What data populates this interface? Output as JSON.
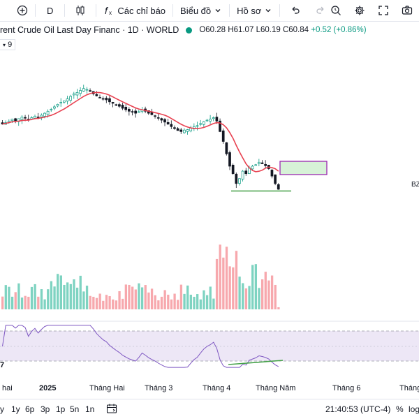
{
  "toolbar": {
    "interval": "D",
    "indicators_label": "Các chỉ báo",
    "chart_type_label": "Biểu đồ",
    "profile_label": "Hồ sơ"
  },
  "legend": {
    "title": "rent Crude Oil Last Day Financ · 1D · WORLD",
    "open": "O60.28",
    "high": "H61.07",
    "low": "L60.19",
    "close": "C60.84",
    "change": "+0.52 (+0.86%)",
    "indicator_badge": "9"
  },
  "price_axis_label": "BZ",
  "rsi_label": "7",
  "time_axis": [
    "hai",
    "2025",
    "Tháng Hai",
    "Tháng 3",
    "Tháng 4",
    "Tháng Năm",
    "Tháng 6",
    "Tháng"
  ],
  "bottom_bar": {
    "ranges": [
      "y",
      "1y",
      "6p",
      "3p",
      "1p",
      "5n",
      "1n"
    ],
    "clock": "21:40:53 (UTC-4)",
    "percent": "%",
    "log": "log"
  },
  "colors": {
    "up": "#089981",
    "down": "#131722",
    "vol_up": "#7ed3c1",
    "vol_down": "#f7a8ad",
    "ma": "#e84150",
    "rsi": "#7e57c2",
    "rsi_band": "#ede7f6",
    "zone_fill": "#d7f2d7",
    "zone_border": "#9c27b0",
    "support": "#43a047"
  },
  "chart_data": {
    "type": "candlestick",
    "close": [
      74.0,
      74.3,
      74.6,
      75.0,
      74.7,
      75.1,
      75.4,
      75.2,
      74.9,
      75.3,
      75.6,
      75.4,
      75.8,
      76.2,
      76.6,
      77.0,
      77.5,
      78.0,
      78.4,
      78.7,
      79.1,
      79.6,
      80.1,
      80.4,
      80.8,
      81.2,
      81.0,
      80.6,
      80.1,
      79.7,
      79.4,
      79.1,
      78.9,
      78.5,
      78.2,
      77.9,
      77.6,
      77.2,
      76.9,
      76.6,
      76.4,
      76.2,
      76.5,
      76.9,
      76.6,
      76.2,
      75.9,
      75.6,
      75.2,
      74.8,
      74.4,
      74.0,
      73.5,
      73.1,
      72.7,
      72.5,
      72.8,
      72.9,
      73.2,
      73.5,
      73.7,
      74.1,
      74.5,
      74.8,
      75.0,
      75.3,
      74.6,
      72.5,
      70.5,
      68.0,
      65.5,
      64.0,
      62.0,
      63.0,
      64.5,
      64.0,
      65.2,
      65.5,
      65.8,
      66.3,
      66.0,
      65.6,
      65.0,
      63.5,
      62.0,
      60.84
    ],
    "ma_period": 9,
    "x_labels": [
      "hai",
      "2025",
      "Tháng Hai",
      "Tháng 3",
      "Tháng 4",
      "Tháng Năm",
      "Tháng 6",
      "Tháng"
    ]
  }
}
